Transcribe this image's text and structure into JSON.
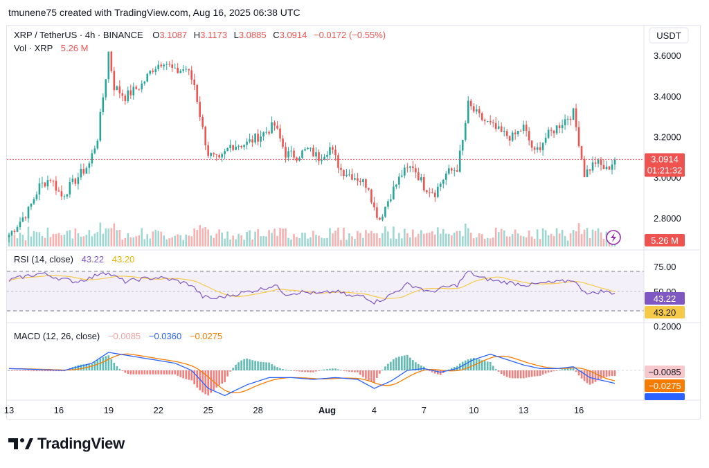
{
  "header": {
    "attribution": "tmunene75 created with TradingView.com, Aug 16, 2025 06:38 UTC"
  },
  "brand": {
    "name": "TradingView"
  },
  "colors": {
    "up": "#26a69a",
    "down": "#ef5350",
    "rsi": "#7e57c2",
    "rsi_ma": "#f7c948",
    "macd": "#2962ff",
    "signal": "#f57c00"
  },
  "chart_data": [
    {
      "type": "candlestick",
      "title": "XRP / TetherUS · 4h · BINANCE",
      "ohlc_labels": {
        "o": "O",
        "h": "H",
        "l": "L",
        "c": "C"
      },
      "ohlc": {
        "open": "3.1087",
        "high": "3.1173",
        "low": "3.0885",
        "close": "3.0914",
        "change": "−0.0172 (−0.55%)"
      },
      "currency": "USDT",
      "yaxis_ticks": [
        "3.6000",
        "3.4000",
        "3.2000",
        "3.0000",
        "2.8000"
      ],
      "ylim": [
        2.66,
        3.75
      ],
      "last_price": "3.0914",
      "countdown": "01:21:32",
      "x_ticks": [
        "13",
        "16",
        "19",
        "22",
        "25",
        "28",
        "Aug",
        "4",
        "7",
        "10",
        "13",
        "16"
      ],
      "path_anchors": [
        [
          0,
          2.72
        ],
        [
          7,
          2.84
        ],
        [
          11,
          2.96
        ],
        [
          15,
          3.0
        ],
        [
          19,
          2.91
        ],
        [
          24,
          2.99
        ],
        [
          29,
          3.07
        ],
        [
          32,
          3.2
        ],
        [
          35,
          3.5
        ],
        [
          36,
          3.62
        ],
        [
          38,
          3.45
        ],
        [
          42,
          3.4
        ],
        [
          48,
          3.46
        ],
        [
          52,
          3.54
        ],
        [
          56,
          3.58
        ],
        [
          60,
          3.52
        ],
        [
          64,
          3.54
        ],
        [
          67,
          3.46
        ],
        [
          70,
          3.24
        ],
        [
          72,
          3.12
        ],
        [
          76,
          3.08
        ],
        [
          80,
          3.16
        ],
        [
          86,
          3.17
        ],
        [
          92,
          3.22
        ],
        [
          96,
          3.26
        ],
        [
          100,
          3.12
        ],
        [
          104,
          3.11
        ],
        [
          108,
          3.14
        ],
        [
          112,
          3.1
        ],
        [
          116,
          3.15
        ],
        [
          120,
          3.04
        ],
        [
          126,
          3.0
        ],
        [
          130,
          2.96
        ],
        [
          132,
          2.85
        ],
        [
          134,
          2.8
        ],
        [
          138,
          2.92
        ],
        [
          142,
          3.02
        ],
        [
          146,
          3.06
        ],
        [
          150,
          2.96
        ],
        [
          154,
          2.93
        ],
        [
          158,
          3.02
        ],
        [
          162,
          3.05
        ],
        [
          164,
          3.18
        ],
        [
          166,
          3.36
        ],
        [
          170,
          3.3
        ],
        [
          174,
          3.26
        ],
        [
          178,
          3.22
        ],
        [
          182,
          3.2
        ],
        [
          186,
          3.25
        ],
        [
          190,
          3.12
        ],
        [
          194,
          3.2
        ],
        [
          198,
          3.25
        ],
        [
          202,
          3.3
        ],
        [
          204,
          3.32
        ],
        [
          206,
          3.18
        ],
        [
          208,
          3.02
        ],
        [
          212,
          3.08
        ],
        [
          216,
          3.04
        ],
        [
          219,
          3.0914
        ]
      ],
      "volume": {
        "label": "Vol · XRP",
        "value": "5.26 M"
      }
    },
    {
      "type": "line",
      "title": "RSI (14, close)",
      "series": [
        {
          "name": "RSI",
          "last": "43.22"
        },
        {
          "name": "RSI-based MA",
          "last": "43.20"
        }
      ],
      "y_ticks": [
        "75.00",
        "50.00"
      ],
      "path_anchors": [
        [
          0,
          62
        ],
        [
          6,
          68
        ],
        [
          12,
          72
        ],
        [
          18,
          65
        ],
        [
          24,
          60
        ],
        [
          30,
          66
        ],
        [
          34,
          75
        ],
        [
          38,
          68
        ],
        [
          42,
          60
        ],
        [
          48,
          64
        ],
        [
          54,
          66
        ],
        [
          60,
          62
        ],
        [
          66,
          55
        ],
        [
          70,
          38
        ],
        [
          74,
          35
        ],
        [
          80,
          40
        ],
        [
          86,
          45
        ],
        [
          92,
          50
        ],
        [
          96,
          55
        ],
        [
          100,
          42
        ],
        [
          106,
          45
        ],
        [
          112,
          42
        ],
        [
          118,
          46
        ],
        [
          124,
          38
        ],
        [
          128,
          40
        ],
        [
          132,
          30
        ],
        [
          136,
          36
        ],
        [
          140,
          46
        ],
        [
          144,
          56
        ],
        [
          148,
          52
        ],
        [
          152,
          44
        ],
        [
          156,
          50
        ],
        [
          162,
          55
        ],
        [
          166,
          75
        ],
        [
          170,
          66
        ],
        [
          176,
          61
        ],
        [
          182,
          58
        ],
        [
          188,
          55
        ],
        [
          194,
          58
        ],
        [
          200,
          60
        ],
        [
          204,
          63
        ],
        [
          206,
          52
        ],
        [
          210,
          42
        ],
        [
          214,
          46
        ],
        [
          219,
          43.22
        ]
      ]
    },
    {
      "type": "line",
      "title": "MACD (12, 26, close)",
      "series": [
        {
          "name": "Histogram",
          "last": "−0.0085"
        },
        {
          "name": "MACD",
          "last": "−0.0360"
        },
        {
          "name": "Signal",
          "last": "−0.0275"
        }
      ],
      "y_ticks": [
        "0.2000"
      ],
      "path_anchors": [
        [
          0,
          0.005
        ],
        [
          20,
          0.0
        ],
        [
          30,
          0.02
        ],
        [
          36,
          0.05
        ],
        [
          44,
          0.04
        ],
        [
          52,
          0.03
        ],
        [
          60,
          0.02
        ],
        [
          66,
          0.0
        ],
        [
          72,
          -0.05
        ],
        [
          78,
          -0.07
        ],
        [
          86,
          -0.04
        ],
        [
          94,
          -0.02
        ],
        [
          102,
          -0.02
        ],
        [
          110,
          -0.025
        ],
        [
          118,
          -0.02
        ],
        [
          126,
          -0.025
        ],
        [
          132,
          -0.05
        ],
        [
          138,
          -0.03
        ],
        [
          144,
          0.0
        ],
        [
          150,
          0.005
        ],
        [
          156,
          -0.005
        ],
        [
          162,
          0.005
        ],
        [
          168,
          0.03
        ],
        [
          174,
          0.045
        ],
        [
          180,
          0.03
        ],
        [
          186,
          0.015
        ],
        [
          192,
          0.005
        ],
        [
          198,
          0.005
        ],
        [
          204,
          0.01
        ],
        [
          210,
          -0.02
        ],
        [
          219,
          -0.036
        ]
      ]
    }
  ]
}
